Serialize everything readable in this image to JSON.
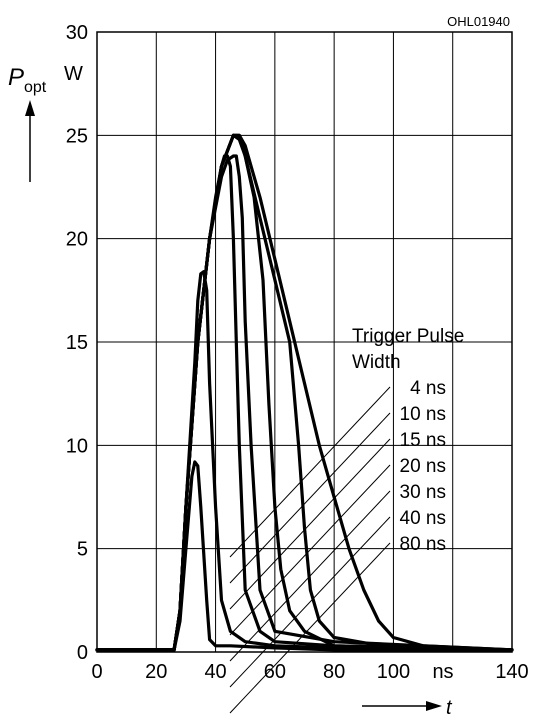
{
  "chart_data": {
    "type": "line",
    "code": "OHL01940",
    "ylabel_main": "P",
    "ylabel_sub": "opt",
    "ylabel_unit": "W",
    "xlabel": "t",
    "xlabel_unit": "ns",
    "xlim": [
      0,
      140
    ],
    "ylim": [
      0,
      30
    ],
    "x_ticks": [
      0,
      20,
      40,
      60,
      80,
      100,
      140
    ],
    "y_ticks": [
      0,
      5,
      10,
      15,
      20,
      25,
      30
    ],
    "grid": true,
    "legend_title_line1": "Trigger Pulse",
    "legend_title_line2": "Width",
    "series": [
      {
        "name": "4 ns",
        "x": [
          0,
          26,
          28,
          30,
          32,
          33,
          34,
          35,
          37,
          38,
          40,
          45,
          60,
          80,
          100,
          140
        ],
        "y": [
          0.1,
          0.1,
          1.5,
          5,
          8.5,
          9.2,
          9,
          7,
          2.5,
          0.6,
          0.3,
          0.3,
          0.2,
          0.1,
          0.1,
          0.1
        ]
      },
      {
        "name": "10 ns",
        "x": [
          0,
          26,
          28,
          30,
          33,
          34,
          35,
          36,
          37,
          38,
          40,
          42,
          45,
          50,
          60,
          80,
          140
        ],
        "y": [
          0.1,
          0.1,
          2,
          7,
          14,
          17,
          18.3,
          18.4,
          17.5,
          13,
          7,
          2.5,
          1,
          0.5,
          0.3,
          0.2,
          0.1
        ]
      },
      {
        "name": "15 ns",
        "x": [
          0,
          26,
          28,
          30,
          34,
          38,
          40,
          42,
          43,
          44,
          45,
          46,
          47,
          48,
          50,
          55,
          60,
          80,
          140
        ],
        "y": [
          0.1,
          0.1,
          2,
          7,
          15,
          20,
          22,
          23.5,
          24,
          24,
          23.5,
          20,
          15,
          10,
          3,
          1,
          0.5,
          0.3,
          0.1
        ]
      },
      {
        "name": "20 ns",
        "x": [
          0,
          26,
          28,
          30,
          34,
          38,
          42,
          44,
          46,
          47,
          48,
          49,
          50,
          52,
          55,
          60,
          80,
          140
        ],
        "y": [
          0.1,
          0.1,
          2,
          7,
          15,
          20,
          23,
          23.8,
          24,
          24,
          23,
          21,
          16,
          10,
          3,
          1,
          0.5,
          0.1
        ]
      },
      {
        "name": "30 ns",
        "x": [
          0,
          26,
          28,
          30,
          34,
          38,
          42,
          46,
          48,
          50,
          53,
          56,
          58,
          60,
          62,
          65,
          70,
          80,
          140
        ],
        "y": [
          0.1,
          0.1,
          2,
          7,
          15,
          20,
          23.5,
          25,
          24.8,
          24,
          22,
          18,
          12,
          7,
          4,
          2,
          1,
          0.3,
          0.1
        ]
      },
      {
        "name": "40 ns",
        "x": [
          0,
          26,
          28,
          30,
          34,
          38,
          42,
          46,
          48,
          50,
          55,
          60,
          65,
          68,
          70,
          72,
          75,
          80,
          100,
          140
        ],
        "y": [
          0.1,
          0.1,
          2,
          7,
          15,
          20,
          23.5,
          25,
          25,
          24,
          21,
          18,
          15,
          10,
          6,
          3,
          1.5,
          0.7,
          0.2,
          0.1
        ]
      },
      {
        "name": "80 ns",
        "x": [
          0,
          26,
          28,
          30,
          34,
          38,
          42,
          46,
          48,
          50,
          55,
          60,
          65,
          70,
          75,
          80,
          85,
          90,
          95,
          100,
          110,
          140
        ],
        "y": [
          0.1,
          0.1,
          2,
          7,
          15,
          20,
          23.5,
          25,
          25,
          24.5,
          22,
          19,
          16,
          13,
          10,
          7.5,
          5,
          3,
          1.5,
          0.7,
          0.3,
          0.1
        ]
      }
    ]
  }
}
